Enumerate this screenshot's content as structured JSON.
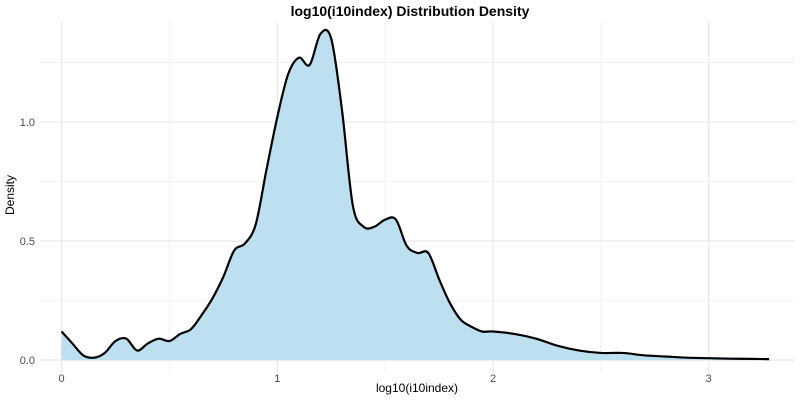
{
  "chart_data": {
    "type": "area",
    "title": "log10(i10index) Distribution Density",
    "xlabel": "log10(i10index)",
    "ylabel": "Density",
    "xlim": [
      -0.1,
      3.4
    ],
    "ylim": [
      -0.05,
      1.42
    ],
    "x_ticks": [
      0,
      1,
      2,
      3
    ],
    "x_tick_labels": [
      "0",
      "1",
      "2",
      "3"
    ],
    "y_ticks": [
      0.0,
      0.5,
      1.0
    ],
    "y_tick_labels": [
      "0.0",
      "0.5",
      "1.0"
    ],
    "grid": true,
    "fill_color": "#bde0f1",
    "line_color": "#000000",
    "series": [
      {
        "x": [
          0.0,
          0.05,
          0.1,
          0.15,
          0.2,
          0.25,
          0.3,
          0.35,
          0.4,
          0.45,
          0.5,
          0.55,
          0.6,
          0.65,
          0.7,
          0.75,
          0.8,
          0.85,
          0.9,
          0.95,
          1.0,
          1.05,
          1.1,
          1.15,
          1.2,
          1.25,
          1.3,
          1.35,
          1.4,
          1.45,
          1.5,
          1.55,
          1.6,
          1.65,
          1.7,
          1.75,
          1.8,
          1.85,
          1.9,
          1.95,
          2.0,
          2.1,
          2.2,
          2.3,
          2.4,
          2.5,
          2.6,
          2.7,
          2.8,
          2.9,
          3.0,
          3.1,
          3.2,
          3.28
        ],
        "y": [
          0.12,
          0.07,
          0.02,
          0.01,
          0.03,
          0.08,
          0.09,
          0.04,
          0.07,
          0.09,
          0.08,
          0.11,
          0.13,
          0.19,
          0.26,
          0.35,
          0.46,
          0.49,
          0.57,
          0.8,
          1.02,
          1.2,
          1.27,
          1.24,
          1.37,
          1.35,
          1.05,
          0.65,
          0.56,
          0.56,
          0.59,
          0.59,
          0.48,
          0.45,
          0.45,
          0.34,
          0.24,
          0.17,
          0.14,
          0.12,
          0.12,
          0.11,
          0.09,
          0.06,
          0.04,
          0.03,
          0.03,
          0.02,
          0.015,
          0.01,
          0.008,
          0.006,
          0.005,
          0.004
        ]
      }
    ]
  }
}
